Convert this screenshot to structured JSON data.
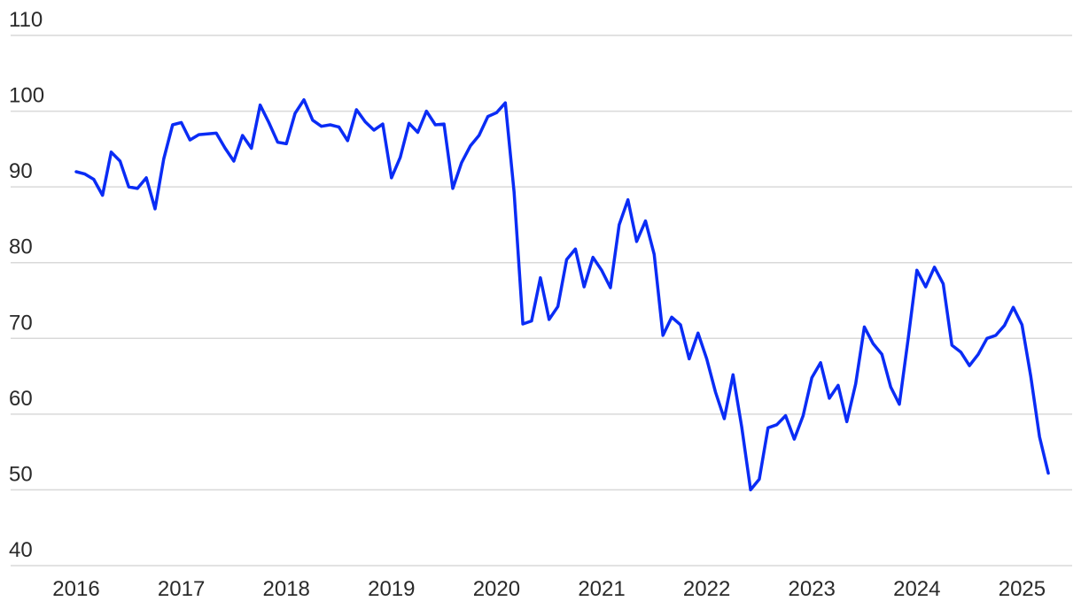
{
  "chart_data": {
    "type": "line",
    "title": "",
    "xlabel": "",
    "ylabel": "",
    "ylim": [
      40,
      110
    ],
    "xlim": [
      2016.0,
      2025.3
    ],
    "grid": true,
    "legend": "none",
    "y_ticks": [
      40,
      50,
      60,
      70,
      80,
      90,
      100,
      110
    ],
    "x_ticks": [
      "2016",
      "2017",
      "2018",
      "2019",
      "2020",
      "2021",
      "2022",
      "2023",
      "2024",
      "2025"
    ],
    "colors": {
      "series": "#0a2cf5",
      "grid": "#d9d9d9",
      "text": "#2a2a2a"
    },
    "series": [
      {
        "x": [
          2016.0,
          2016.083,
          2016.167,
          2016.25,
          2016.333,
          2016.417,
          2016.5,
          2016.583,
          2016.667,
          2016.75,
          2016.833,
          2016.917,
          2017.0,
          2017.083,
          2017.167,
          2017.25,
          2017.333,
          2017.417,
          2017.5,
          2017.583,
          2017.667,
          2017.75,
          2017.833,
          2017.917,
          2018.0,
          2018.083,
          2018.167,
          2018.25,
          2018.333,
          2018.417,
          2018.5,
          2018.583,
          2018.667,
          2018.75,
          2018.833,
          2018.917,
          2019.0,
          2019.083,
          2019.167,
          2019.25,
          2019.333,
          2019.417,
          2019.5,
          2019.583,
          2019.667,
          2019.75,
          2019.833,
          2019.917,
          2020.0,
          2020.083,
          2020.167,
          2020.25,
          2020.333,
          2020.417,
          2020.5,
          2020.583,
          2020.667,
          2020.75,
          2020.833,
          2020.917,
          2021.0,
          2021.083,
          2021.167,
          2021.25,
          2021.333,
          2021.417,
          2021.5,
          2021.583,
          2021.667,
          2021.75,
          2021.833,
          2021.917,
          2022.0,
          2022.083,
          2022.167,
          2022.25,
          2022.333,
          2022.417,
          2022.5,
          2022.583,
          2022.667,
          2022.75,
          2022.833,
          2022.917,
          2023.0,
          2023.083,
          2023.167,
          2023.25,
          2023.333,
          2023.417,
          2023.5,
          2023.583,
          2023.667,
          2023.75,
          2023.833,
          2023.917,
          2024.0,
          2024.083,
          2024.167,
          2024.25,
          2024.333,
          2024.417,
          2024.5,
          2024.583,
          2024.667,
          2024.75,
          2024.833,
          2024.917,
          2025.0,
          2025.083,
          2025.167,
          2025.25
        ],
        "values": [
          92.0,
          91.7,
          91.0,
          88.9,
          94.6,
          93.4,
          90.0,
          89.8,
          91.2,
          87.1,
          93.7,
          98.2,
          98.5,
          96.2,
          96.9,
          97.0,
          97.1,
          95.1,
          93.4,
          96.8,
          95.1,
          100.8,
          98.5,
          95.9,
          95.7,
          99.7,
          101.5,
          98.8,
          98.0,
          98.2,
          97.9,
          96.1,
          100.2,
          98.6,
          97.5,
          98.3,
          91.2,
          93.9,
          98.4,
          97.2,
          100.0,
          98.2,
          98.3,
          89.8,
          93.2,
          95.4,
          96.8,
          99.3,
          99.8,
          101.1,
          89.3,
          71.9,
          72.3,
          78.0,
          72.5,
          74.2,
          80.4,
          81.8,
          76.8,
          80.7,
          79.0,
          76.7,
          85.0,
          88.3,
          82.8,
          85.5,
          81.1,
          70.4,
          72.8,
          71.8,
          67.3,
          70.7,
          67.3,
          62.9,
          59.4,
          65.2,
          58.3,
          50.0,
          51.4,
          58.2,
          58.6,
          59.8,
          56.7,
          59.8,
          64.8,
          66.8,
          62.1,
          63.8,
          59.0,
          64.0,
          71.5,
          69.3,
          67.9,
          63.6,
          61.3,
          70.0,
          79.0,
          76.8,
          79.4,
          77.2,
          69.1,
          68.2,
          66.4,
          67.9,
          70.0,
          70.4,
          71.7,
          74.1,
          71.8,
          65.0,
          57.0,
          52.2
        ]
      }
    ]
  }
}
